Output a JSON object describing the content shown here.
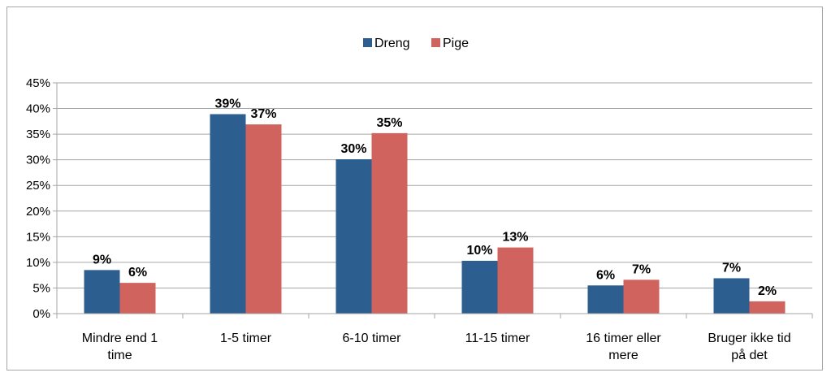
{
  "chart_data": {
    "type": "bar",
    "categories": [
      [
        "Mindre end 1",
        "time"
      ],
      [
        "1-5 timer"
      ],
      [
        "6-10 timer"
      ],
      [
        "11-15 timer"
      ],
      [
        "16 timer eller",
        "mere"
      ],
      [
        "Bruger ikke tid",
        "på det"
      ]
    ],
    "series": [
      {
        "name": "Dreng",
        "values": [
          9,
          39,
          30,
          10,
          6,
          7
        ],
        "plotted": [
          8.5,
          38.9,
          30.1,
          10.3,
          5.5,
          6.9
        ],
        "color": "#2c5f8f"
      },
      {
        "name": "Pige",
        "values": [
          6,
          37,
          35,
          13,
          7,
          2
        ],
        "plotted": [
          6.0,
          36.9,
          35.2,
          12.9,
          6.6,
          2.4
        ],
        "color": "#d0635d"
      }
    ],
    "value_suffix": "%",
    "ylim": [
      0,
      45
    ],
    "yticks": [
      "0%",
      "5%",
      "10%",
      "15%",
      "20%",
      "25%",
      "30%",
      "35%",
      "40%",
      "45%"
    ],
    "grid": true,
    "legend_position": "top-center"
  }
}
